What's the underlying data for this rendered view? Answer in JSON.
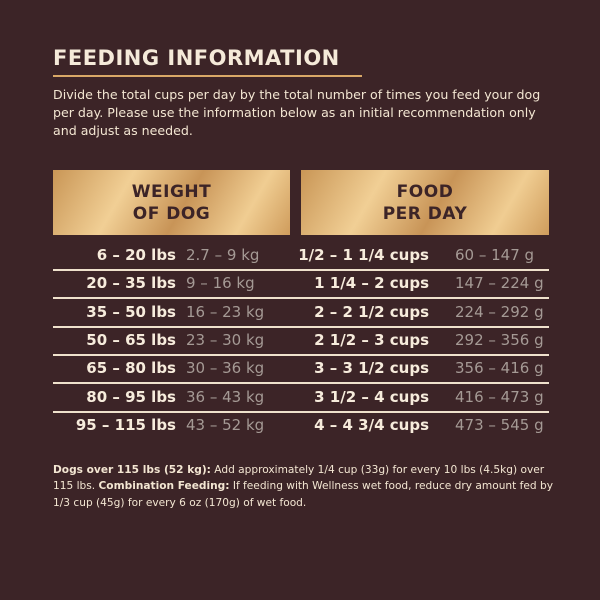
{
  "title": "FEEDING INFORMATION",
  "intro": "Divide the total cups per day by the total number of times you feed your dog per day. Please use the information below as an initial recommendation only and adjust as needed.",
  "headers": {
    "weight_line1": "WEIGHT",
    "weight_line2": "OF DOG",
    "food_line1": "FOOD",
    "food_line2": "PER DAY"
  },
  "rows": [
    {
      "lbs": "6 – 20 lbs",
      "kg": "2.7 – 9 kg",
      "cups": "1/2 – 1 1/4 cups",
      "grams": "60 – 147 g"
    },
    {
      "lbs": "20 – 35 lbs",
      "kg": "9 – 16 kg",
      "cups": "1 1/4 – 2 cups",
      "grams": "147 – 224 g"
    },
    {
      "lbs": "35 – 50 lbs",
      "kg": "16 – 23 kg",
      "cups": "2 – 2 1/2 cups",
      "grams": "224 – 292 g"
    },
    {
      "lbs": "50 – 65 lbs",
      "kg": "23 – 30 kg",
      "cups": "2 1/2 – 3 cups",
      "grams": "292 – 356 g"
    },
    {
      "lbs": "65 – 80 lbs",
      "kg": "30 – 36 kg",
      "cups": "3 – 3 1/2 cups",
      "grams": "356 – 416 g"
    },
    {
      "lbs": "80 – 95 lbs",
      "kg": "36 – 43 kg",
      "cups": "3 1/2 – 4 cups",
      "grams": "416 – 473 g"
    },
    {
      "lbs": "95 – 115 lbs",
      "kg": "43 – 52 kg",
      "cups": "4 – 4 3/4 cups",
      "grams": "473 – 545 g"
    }
  ],
  "footer": {
    "bold1": "Dogs over 115 lbs (52 kg):",
    "text1": " Add approximately 1/4 cup (33g) for every 10 lbs (4.5kg) over 115 lbs. ",
    "bold2": "Combination Feeding:",
    "text2": " If feeding with Wellness wet food, reduce dry amount fed by 1/3 cup (45g) for every 6 oz (170g) of wet food."
  },
  "colors": {
    "background": "#3c2427",
    "gold": "#d9a867"
  }
}
